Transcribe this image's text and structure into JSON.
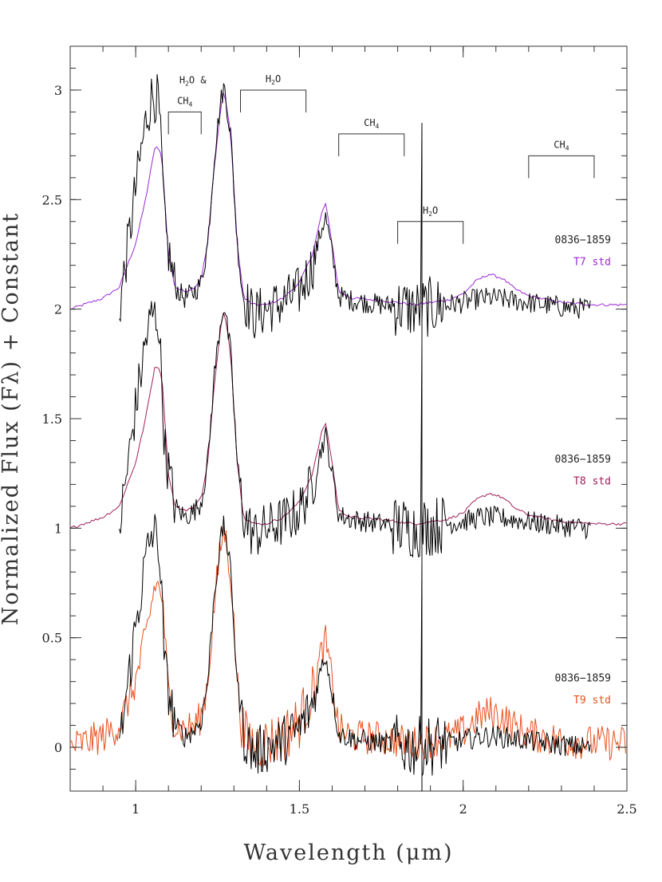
{
  "chart_data": {
    "type": "line",
    "xlabel": "Wavelength (μm)",
    "ylabel": "Normalized Flux (Fλ) + Constant",
    "xlim": [
      0.8,
      2.5
    ],
    "ylim": [
      -0.2,
      3.2
    ],
    "xticks": [
      1,
      1.5,
      2,
      2.5
    ],
    "xtick_labels": [
      "1",
      "1.5",
      "2",
      "2.5"
    ],
    "yticks": [
      0,
      0.5,
      1,
      1.5,
      2,
      2.5,
      3
    ],
    "ytick_labels": [
      "0",
      "0.5",
      "1",
      "1.5",
      "2",
      "2.5",
      "3"
    ],
    "grid": false,
    "colors": {
      "target": "#000000",
      "T7": "#9b28d8",
      "T8": "#a0205a",
      "T9": "#e8501e"
    },
    "offsets": [
      2,
      1,
      0
    ],
    "template_points": [
      [
        0.8,
        0.0
      ],
      [
        0.9,
        0.05
      ],
      [
        0.95,
        0.1
      ],
      [
        1.0,
        0.3
      ],
      [
        1.03,
        0.5
      ],
      [
        1.06,
        0.75
      ],
      [
        1.08,
        0.7
      ],
      [
        1.1,
        0.25
      ],
      [
        1.12,
        0.1
      ],
      [
        1.15,
        0.08
      ],
      [
        1.18,
        0.1
      ],
      [
        1.2,
        0.14
      ],
      [
        1.22,
        0.3
      ],
      [
        1.24,
        0.65
      ],
      [
        1.26,
        0.92
      ],
      [
        1.27,
        1.0
      ],
      [
        1.29,
        0.8
      ],
      [
        1.31,
        0.3
      ],
      [
        1.33,
        0.05
      ],
      [
        1.36,
        0.02
      ],
      [
        1.4,
        0.02
      ],
      [
        1.45,
        0.05
      ],
      [
        1.5,
        0.12
      ],
      [
        1.54,
        0.25
      ],
      [
        1.57,
        0.45
      ],
      [
        1.58,
        0.48
      ],
      [
        1.6,
        0.3
      ],
      [
        1.62,
        0.08
      ],
      [
        1.66,
        0.05
      ],
      [
        1.75,
        0.04
      ],
      [
        1.85,
        0.02
      ],
      [
        1.95,
        0.04
      ],
      [
        2.0,
        0.07
      ],
      [
        2.04,
        0.13
      ],
      [
        2.08,
        0.16
      ],
      [
        2.12,
        0.14
      ],
      [
        2.16,
        0.09
      ],
      [
        2.2,
        0.06
      ],
      [
        2.3,
        0.03
      ],
      [
        2.4,
        0.02
      ],
      [
        2.5,
        0.02
      ]
    ],
    "target_points": [
      [
        0.95,
        0.0
      ],
      [
        1.0,
        0.55
      ],
      [
        1.03,
        0.85
      ],
      [
        1.05,
        0.98
      ],
      [
        1.07,
        0.95
      ],
      [
        1.09,
        0.35
      ],
      [
        1.12,
        0.1
      ],
      [
        1.15,
        0.05
      ],
      [
        1.18,
        0.08
      ],
      [
        1.2,
        0.12
      ],
      [
        1.22,
        0.3
      ],
      [
        1.24,
        0.7
      ],
      [
        1.26,
        0.95
      ],
      [
        1.27,
        1.02
      ],
      [
        1.29,
        0.8
      ],
      [
        1.31,
        0.3
      ],
      [
        1.33,
        0.05
      ],
      [
        1.36,
        -0.03
      ],
      [
        1.4,
        0.0
      ],
      [
        1.45,
        0.03
      ],
      [
        1.5,
        0.08
      ],
      [
        1.54,
        0.2
      ],
      [
        1.57,
        0.38
      ],
      [
        1.58,
        0.42
      ],
      [
        1.6,
        0.25
      ],
      [
        1.62,
        0.06
      ],
      [
        1.66,
        0.04
      ],
      [
        1.75,
        0.02
      ],
      [
        1.85,
        0.0
      ],
      [
        1.95,
        0.02
      ],
      [
        2.0,
        0.03
      ],
      [
        2.05,
        0.05
      ],
      [
        2.1,
        0.05
      ],
      [
        2.2,
        0.03
      ],
      [
        2.3,
        0.01
      ],
      [
        2.39,
        0.0
      ]
    ],
    "series": [
      {
        "row": "T7",
        "offset": 2
      },
      {
        "row": "T8",
        "offset": 1
      },
      {
        "row": "T9",
        "offset": 0
      }
    ],
    "labels": [
      {
        "target": "0836−1859",
        "std": "T7 std"
      },
      {
        "target": "0836−1859",
        "std": "T8 std"
      },
      {
        "target": "0836−1859",
        "std": "T9 std"
      }
    ],
    "annotations": [
      {
        "text": "H2O &",
        "line2": "CH4",
        "x": [
          1.1,
          1.2
        ],
        "y": 2.9
      },
      {
        "text": "H2O",
        "x": [
          1.32,
          1.52
        ],
        "y": 3.0
      },
      {
        "text": "CH4",
        "x": [
          1.62,
          1.82
        ],
        "y": 2.8
      },
      {
        "text": "H2O",
        "x": [
          1.8,
          2.0
        ],
        "y": 2.4
      },
      {
        "text": "CH4",
        "x": [
          2.2,
          2.4
        ],
        "y": 2.7
      }
    ]
  }
}
